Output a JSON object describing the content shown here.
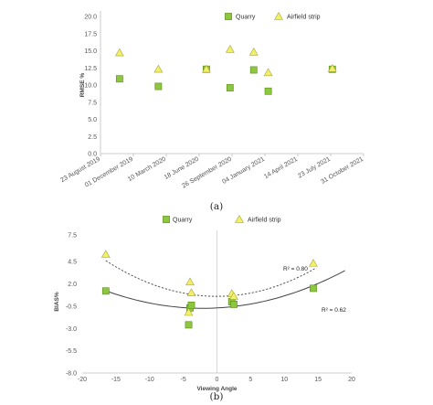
{
  "colors": {
    "quarry_fill": "#8dc63f",
    "quarry_stroke": "#5a8a1e",
    "airfield_fill": "#f2f06a",
    "airfield_stroke": "#a9a43a",
    "axis": "#bfbfbf",
    "fit_line": "#444444"
  },
  "chart_data": [
    {
      "type": "scatter",
      "panel_label": "(a)",
      "xlabel": "",
      "ylabel": "RMSE %",
      "ylim": [
        0,
        20
      ],
      "y_ticks": [
        "0.0",
        "2.5",
        "5.0",
        "7.5",
        "10.0",
        "12.5",
        "15.0",
        "17.5",
        "20.0"
      ],
      "x_ticks": [
        "23 August 2019",
        "01 December 2019",
        "10 March 2020",
        "18 June 2020",
        "26 September 2020",
        "04 January 2021",
        "14 April 2021",
        "23 July 2021",
        "31 October 2021"
      ],
      "x_range": [
        "2019-08-23",
        "2021-10-31"
      ],
      "legend": {
        "position": "top-right",
        "entries": [
          "Quarry",
          "Airfield strip"
        ]
      },
      "series": [
        {
          "name": "Quarry",
          "marker": "square",
          "points": [
            {
              "x": "2019-10-20",
              "y": 10.9
            },
            {
              "x": "2020-02-15",
              "y": 9.8
            },
            {
              "x": "2020-07-10",
              "y": 12.3
            },
            {
              "x": "2020-09-20",
              "y": 9.6
            },
            {
              "x": "2020-12-01",
              "y": 12.2
            },
            {
              "x": "2021-01-14",
              "y": 9.1
            },
            {
              "x": "2021-07-28",
              "y": 12.3
            }
          ]
        },
        {
          "name": "Airfield strip",
          "marker": "triangle",
          "points": [
            {
              "x": "2019-10-20",
              "y": 14.7
            },
            {
              "x": "2020-02-15",
              "y": 12.3
            },
            {
              "x": "2020-07-10",
              "y": 12.3
            },
            {
              "x": "2020-09-20",
              "y": 15.2
            },
            {
              "x": "2020-12-01",
              "y": 14.8
            },
            {
              "x": "2021-01-14",
              "y": 11.8
            },
            {
              "x": "2021-07-28",
              "y": 12.4
            }
          ]
        }
      ]
    },
    {
      "type": "scatter",
      "panel_label": "(b)",
      "xlabel": "Viewing Angle",
      "ylabel": "BIAS%",
      "xlim": [
        -20,
        20
      ],
      "ylim": [
        -8,
        8
      ],
      "x_ticks": [
        "-20",
        "-15",
        "-10",
        "-5",
        "0",
        "5",
        "10",
        "15",
        "20"
      ],
      "y_ticks": [
        "7.5",
        "4.5",
        "2.0",
        "-0.5",
        "-3.0",
        "-5.5",
        "-8.0"
      ],
      "legend": {
        "position": "top-center",
        "entries": [
          "Quarry",
          "Airfield strip"
        ]
      },
      "series": [
        {
          "name": "Quarry",
          "marker": "square",
          "points": [
            {
              "x": -16.5,
              "y": 1.2
            },
            {
              "x": -4.0,
              "y": -0.7
            },
            {
              "x": -3.8,
              "y": -0.4
            },
            {
              "x": -4.2,
              "y": -2.6
            },
            {
              "x": 2.2,
              "y": 0.0
            },
            {
              "x": 2.5,
              "y": -0.3
            },
            {
              "x": 14.3,
              "y": 1.5
            }
          ]
        },
        {
          "name": "Airfield strip",
          "marker": "triangle",
          "points": [
            {
              "x": -16.5,
              "y": 5.3
            },
            {
              "x": -4.0,
              "y": 2.2
            },
            {
              "x": -3.8,
              "y": 1.0
            },
            {
              "x": -4.2,
              "y": -1.2
            },
            {
              "x": 2.2,
              "y": 0.9
            },
            {
              "x": 2.5,
              "y": 0.6
            },
            {
              "x": 14.3,
              "y": 4.3
            }
          ]
        }
      ],
      "trendlines": [
        {
          "series": "Airfield strip",
          "style": "dashed",
          "type": "polynomial-2",
          "coefficients": [
            0.0147,
            0.0,
            0.6
          ],
          "label": "R² = 0.80"
        },
        {
          "series": "Quarry",
          "style": "solid",
          "type": "polynomial-2",
          "coefficients": [
            0.0095,
            0.04,
            -0.7
          ],
          "label": "R² = 0.62"
        }
      ]
    }
  ]
}
